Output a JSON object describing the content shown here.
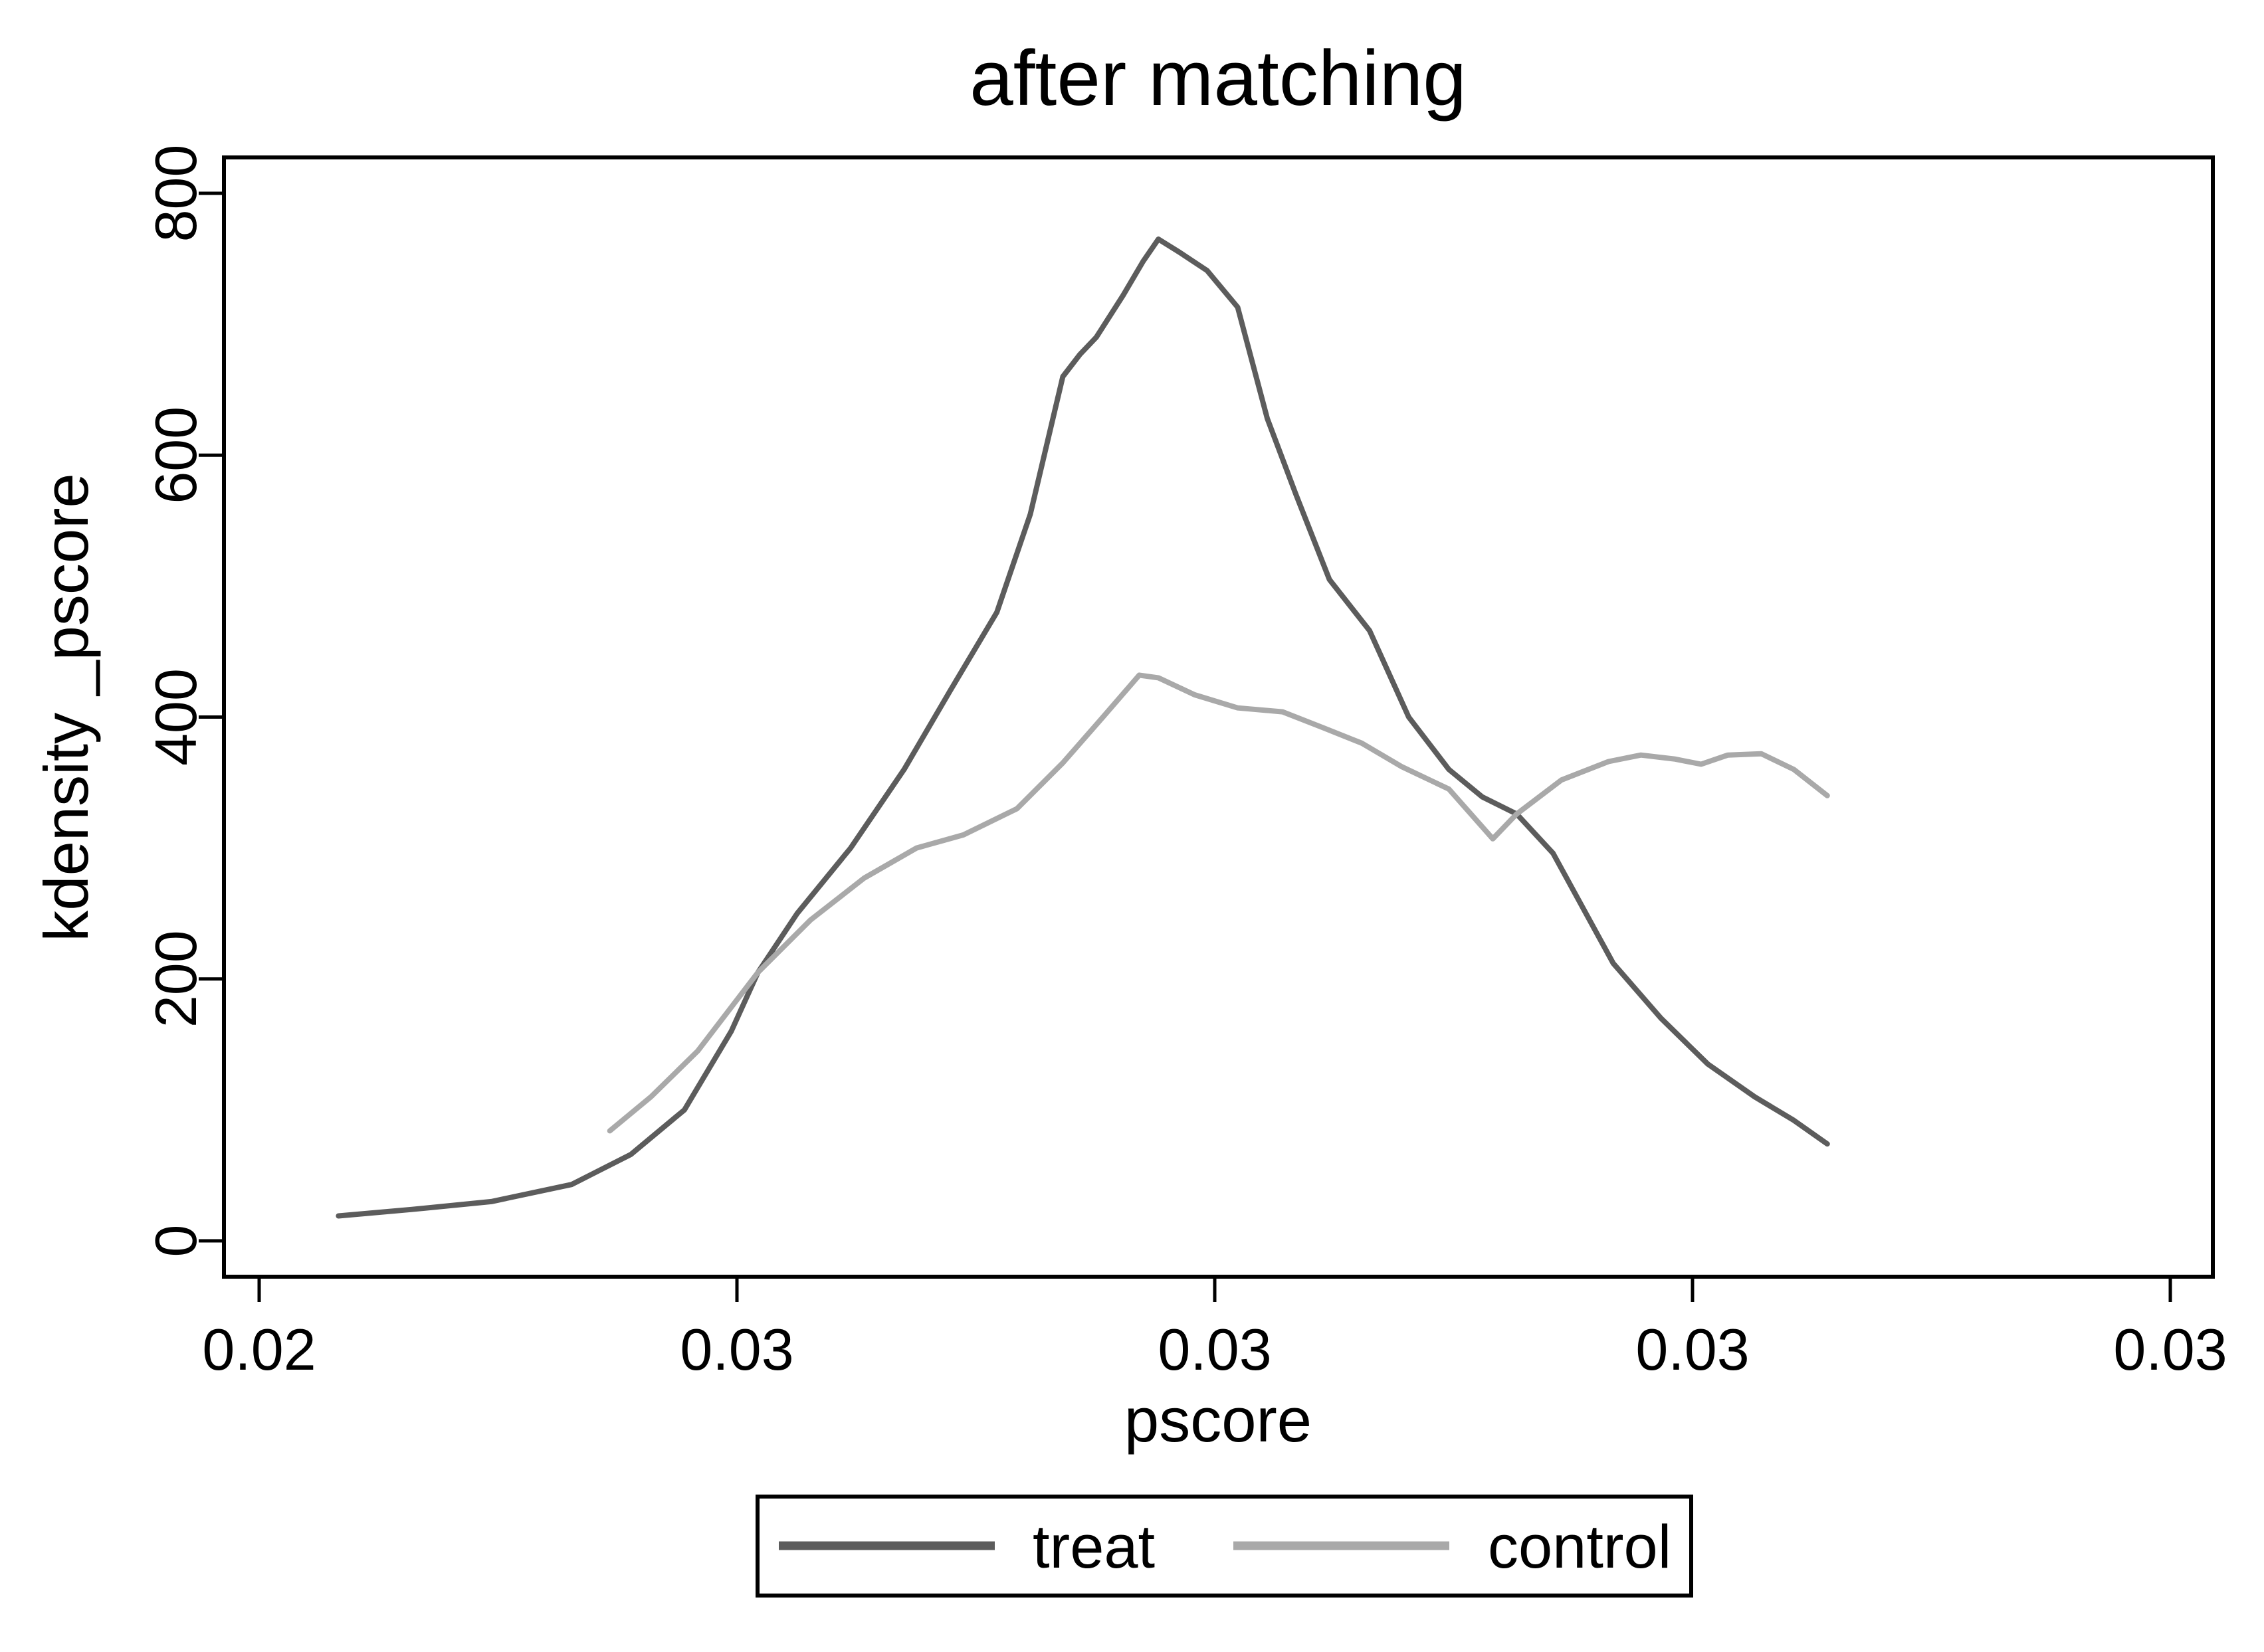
{
  "title": "after matching",
  "axes": {
    "x": {
      "label": "pscore",
      "tick_labels": [
        "0.02",
        "0.03",
        "0.03",
        "0.03",
        "0.03"
      ],
      "tick_values": [
        0.02,
        0.025,
        0.03,
        0.035,
        0.04
      ]
    },
    "y": {
      "label": "kdensity _pscore",
      "tick_labels": [
        "0",
        "200",
        "400",
        "600",
        "800"
      ],
      "tick_values": [
        0,
        200,
        400,
        600,
        800
      ],
      "range": [
        0,
        800
      ]
    }
  },
  "legend": {
    "items": [
      {
        "label": "treat",
        "color": "#5c5c5c"
      },
      {
        "label": "control",
        "color": "#a9a9a9"
      }
    ]
  },
  "colors": {
    "treat": "#5c5c5c",
    "control": "#a9a9a9",
    "frame": "#000000",
    "background": "#ffffff"
  },
  "chart_data": {
    "type": "line",
    "title": "after matching",
    "xlabel": "pscore",
    "ylabel": "kdensity _pscore",
    "xlim": [
      0.0196,
      0.0405
    ],
    "ylim": [
      0,
      800
    ],
    "grid": false,
    "legend_position": "bottom",
    "series": [
      {
        "name": "treat",
        "color": "#5c5c5c",
        "points": [
          [
            0.02083,
            19
          ],
          [
            0.0216,
            24
          ],
          [
            0.02243,
            30
          ],
          [
            0.02327,
            43
          ],
          [
            0.02389,
            66
          ],
          [
            0.02445,
            100
          ],
          [
            0.02494,
            160
          ],
          [
            0.02522,
            205
          ],
          [
            0.02563,
            250
          ],
          [
            0.02619,
            300
          ],
          [
            0.02675,
            360
          ],
          [
            0.02723,
            420
          ],
          [
            0.02772,
            480
          ],
          [
            0.02807,
            555
          ],
          [
            0.02841,
            660
          ],
          [
            0.02859,
            677
          ],
          [
            0.02876,
            690
          ],
          [
            0.02904,
            722
          ],
          [
            0.02925,
            748
          ],
          [
            0.02941,
            765
          ],
          [
            0.02963,
            755
          ],
          [
            0.02992,
            741
          ],
          [
            0.03024,
            713
          ],
          [
            0.03055,
            628
          ],
          [
            0.03085,
            570
          ],
          [
            0.0312,
            505
          ],
          [
            0.03162,
            466
          ],
          [
            0.03203,
            400
          ],
          [
            0.03245,
            360
          ],
          [
            0.0328,
            339
          ],
          [
            0.03316,
            326
          ],
          [
            0.03354,
            296
          ],
          [
            0.03417,
            212
          ],
          [
            0.03467,
            170
          ],
          [
            0.03516,
            135
          ],
          [
            0.03565,
            110
          ],
          [
            0.03606,
            92
          ],
          [
            0.03641,
            74
          ]
        ]
      },
      {
        "name": "control",
        "color": "#a9a9a9",
        "points": [
          [
            0.02367,
            84
          ],
          [
            0.0241,
            110
          ],
          [
            0.02459,
            145
          ],
          [
            0.02522,
            205
          ],
          [
            0.02577,
            245
          ],
          [
            0.02633,
            277
          ],
          [
            0.02688,
            300
          ],
          [
            0.02737,
            310
          ],
          [
            0.02793,
            330
          ],
          [
            0.02841,
            365
          ],
          [
            0.02883,
            400
          ],
          [
            0.02921,
            432
          ],
          [
            0.02941,
            430
          ],
          [
            0.02979,
            417
          ],
          [
            0.03024,
            407
          ],
          [
            0.03071,
            404
          ],
          [
            0.03113,
            392
          ],
          [
            0.03154,
            380
          ],
          [
            0.03196,
            362
          ],
          [
            0.03245,
            345
          ],
          [
            0.03291,
            307
          ],
          [
            0.03316,
            326
          ],
          [
            0.03363,
            352
          ],
          [
            0.03412,
            366
          ],
          [
            0.03446,
            371
          ],
          [
            0.03481,
            368
          ],
          [
            0.03509,
            364
          ],
          [
            0.03537,
            371
          ],
          [
            0.03572,
            372
          ],
          [
            0.03606,
            360
          ],
          [
            0.03641,
            340
          ]
        ]
      }
    ]
  }
}
